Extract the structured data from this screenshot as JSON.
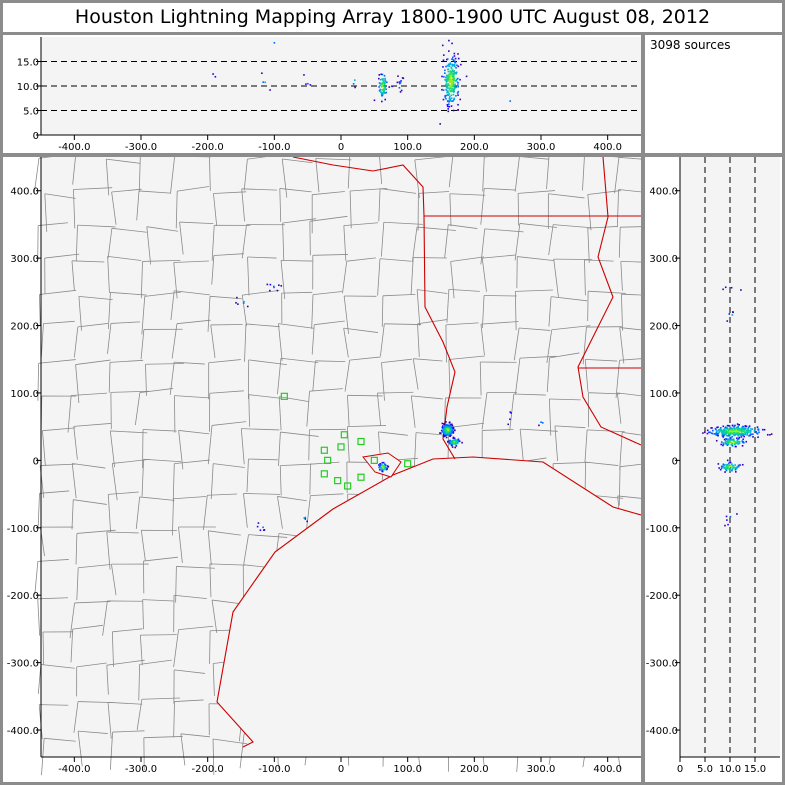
{
  "title": "Houston Lightning Mapping Array   1800-1900 UTC  August 08, 2012",
  "source_count": "3098 sources",
  "colors": {
    "plot_bg": "#f4f4f4",
    "county": "#8a8a8a",
    "state": "#cc0000",
    "station": "#22cc22"
  },
  "chart_data": [
    {
      "type": "scatter",
      "panel": "altitude-vs-east-west",
      "xlim": [
        -450,
        450
      ],
      "ylim": [
        0,
        20
      ],
      "x_ticks": [
        "-400.0",
        "-300.0",
        "-200.0",
        "-100.0",
        "0",
        "100.0",
        "200.0",
        "300.0",
        "400.0"
      ],
      "y_ticks": [
        "0",
        "5.0",
        "10.0",
        "15.0"
      ],
      "reference_lines": [
        5,
        10,
        15
      ],
      "clusters": [
        {
          "x": 165,
          "y": 11,
          "sx": 6,
          "sy": 2.5,
          "n": 260
        },
        {
          "x": 63,
          "y": 10,
          "sx": 3,
          "sy": 1.2,
          "n": 70
        },
        {
          "x": 90,
          "y": 10,
          "sx": 6,
          "sy": 1.0,
          "n": 12
        },
        {
          "x": 20,
          "y": 11,
          "sx": 3,
          "sy": 1.0,
          "n": 3
        },
        {
          "x": -50,
          "y": 10,
          "sx": 3,
          "sy": 1.0,
          "n": 4
        },
        {
          "x": -115,
          "y": 11,
          "sx": 5,
          "sy": 1.0,
          "n": 4
        },
        {
          "x": -190,
          "y": 11.5,
          "sx": 3,
          "sy": 0.5,
          "n": 2
        },
        {
          "x": -100,
          "y": 19,
          "sx": 1,
          "sy": 0.3,
          "n": 1
        },
        {
          "x": 255,
          "y": 7,
          "sx": 2,
          "sy": 0.4,
          "n": 1
        }
      ]
    },
    {
      "type": "scatter",
      "panel": "plan-view-map",
      "xlim": [
        -450,
        450
      ],
      "ylim": [
        -440,
        450
      ],
      "x_ticks": [
        "-400.0",
        "-300.0",
        "-200.0",
        "-100.0",
        "0",
        "100.0",
        "200.0",
        "300.0",
        "400.0"
      ],
      "y_ticks": [
        "400.0",
        "300.0",
        "200.0",
        "100.0",
        "0",
        "-100.0",
        "-200.0",
        "-300.0",
        "-400.0"
      ],
      "clusters": [
        {
          "x": 160,
          "y": 45,
          "sx": 4,
          "sy": 4,
          "n": 300
        },
        {
          "x": 170,
          "y": 27,
          "sx": 4,
          "sy": 2.5,
          "n": 80
        },
        {
          "x": 63,
          "y": -10,
          "sx": 3,
          "sy": 3,
          "n": 70
        },
        {
          "x": -105,
          "y": 258,
          "sx": 8,
          "sy": 3,
          "n": 8
        },
        {
          "x": -145,
          "y": 235,
          "sx": 6,
          "sy": 4,
          "n": 6
        },
        {
          "x": -120,
          "y": -100,
          "sx": 5,
          "sy": 4,
          "n": 6
        },
        {
          "x": -55,
          "y": -85,
          "sx": 3,
          "sy": 3,
          "n": 4
        },
        {
          "x": 255,
          "y": 65,
          "sx": 4,
          "sy": 6,
          "n": 4
        },
        {
          "x": 300,
          "y": 55,
          "sx": 4,
          "sy": 3,
          "n": 3
        }
      ],
      "stations": [
        [
          -85,
          95
        ],
        [
          -25,
          15
        ],
        [
          -25,
          -20
        ],
        [
          -5,
          -30
        ],
        [
          0,
          20
        ],
        [
          5,
          38
        ],
        [
          10,
          -38
        ],
        [
          30,
          28
        ],
        [
          30,
          -25
        ],
        [
          50,
          0
        ],
        [
          -20,
          0
        ],
        [
          100,
          -5
        ]
      ]
    },
    {
      "type": "scatter",
      "panel": "north-south-vs-altitude",
      "xlim": [
        0,
        20
      ],
      "ylim": [
        -440,
        450
      ],
      "x_ticks": [
        "0",
        "5.0",
        "10.0",
        "15.0"
      ],
      "y_ticks": [
        "400.0",
        "300.0",
        "200.0",
        "100.0",
        "0",
        "-100.0",
        "-200.0",
        "-300.0",
        "-400.0"
      ],
      "reference_lines": [
        5,
        10,
        15
      ],
      "clusters": [
        {
          "x": 11,
          "y": 43,
          "sx": 2.5,
          "sy": 4,
          "n": 300
        },
        {
          "x": 10.5,
          "y": 27,
          "sx": 1.2,
          "sy": 3,
          "n": 80
        },
        {
          "x": 10,
          "y": -10,
          "sx": 1.0,
          "sy": 3,
          "n": 70
        },
        {
          "x": 11.5,
          "y": 255,
          "sx": 1.5,
          "sy": 2,
          "n": 4
        },
        {
          "x": 10.5,
          "y": 215,
          "sx": 0.8,
          "sy": 4,
          "n": 5
        },
        {
          "x": 10,
          "y": -90,
          "sx": 0.6,
          "sy": 10,
          "n": 6
        }
      ]
    }
  ]
}
